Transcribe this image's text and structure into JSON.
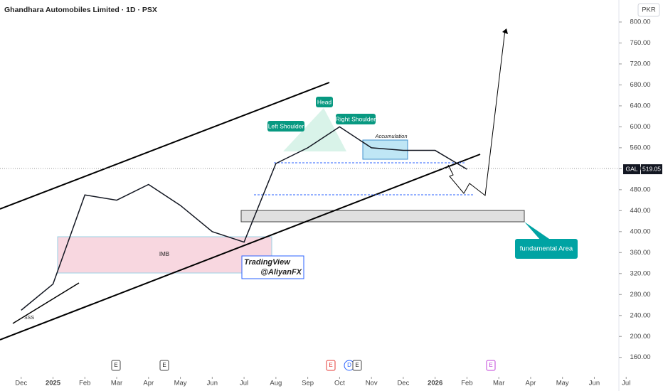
{
  "chart_data": {
    "type": "line",
    "title": "Ghandhara Automobiles Limited · 1D · PSX",
    "currency": "PKR",
    "x": [
      "2024-12",
      "2025-01",
      "2025-02",
      "2025-03",
      "2025-04",
      "2025-05",
      "2025-06",
      "2025-07",
      "2025-08",
      "2025-09",
      "2025-10",
      "2025-11",
      "2025-12",
      "2026-01",
      "2026-02"
    ],
    "series": [
      {
        "name": "GAL",
        "color": "#131722",
        "values": [
          250,
          300,
          470,
          460,
          490,
          450,
          400,
          380,
          530,
          560,
          600,
          560,
          555,
          555,
          519.05
        ],
        "last_label": "519.05"
      }
    ],
    "xlim": [
      "2024-11",
      "2026-08"
    ],
    "xticks": [
      {
        "value": "2024-12",
        "label": "Dec"
      },
      {
        "value": "2025-01",
        "label": "2025"
      },
      {
        "value": "2025-02",
        "label": "Feb"
      },
      {
        "value": "2025-03",
        "label": "Mar"
      },
      {
        "value": "2025-04",
        "label": "Apr"
      },
      {
        "value": "2025-05",
        "label": "May"
      },
      {
        "value": "2025-06",
        "label": "Jun"
      },
      {
        "value": "2025-07",
        "label": "Jul"
      },
      {
        "value": "2025-08",
        "label": "Aug"
      },
      {
        "value": "2025-09",
        "label": "Sep"
      },
      {
        "value": "2025-10",
        "label": "Oct"
      },
      {
        "value": "2025-11",
        "label": "Nov"
      },
      {
        "value": "2025-12",
        "label": "Dec"
      },
      {
        "value": "2026-01",
        "label": "2026"
      },
      {
        "value": "2026-02",
        "label": "Feb"
      },
      {
        "value": "2026-03",
        "label": "Mar"
      },
      {
        "value": "2026-04",
        "label": "Apr"
      },
      {
        "value": "2026-05",
        "label": "May"
      },
      {
        "value": "2026-06",
        "label": "Jun"
      },
      {
        "value": "2026-07",
        "label": "Jul"
      }
    ],
    "ylim": [
      123,
      842
    ],
    "yticks": [
      {
        "value": 160,
        "label": "160.00"
      },
      {
        "value": 200,
        "label": "200.00"
      },
      {
        "value": 240,
        "label": "240.00"
      },
      {
        "value": 280,
        "label": "280.00"
      },
      {
        "value": 320,
        "label": "320.00"
      },
      {
        "value": 360,
        "label": "360.00"
      },
      {
        "value": 400,
        "label": "400.00"
      },
      {
        "value": 440,
        "label": "440.00"
      },
      {
        "value": 480,
        "label": "480.00"
      },
      {
        "value": 520,
        "label": "520.00"
      },
      {
        "value": 560,
        "label": "560.00"
      },
      {
        "value": 600,
        "label": "600.00"
      },
      {
        "value": 640,
        "label": "640.00"
      },
      {
        "value": 680,
        "label": "680.00"
      },
      {
        "value": 720,
        "label": "720.00"
      },
      {
        "value": 760,
        "label": "760.00"
      },
      {
        "value": 800,
        "label": "800.00"
      }
    ],
    "annotations": {
      "left_shoulder": "Left Shoulder",
      "head": "Head",
      "right_shoulder": "Right Shoulder",
      "accumulation": "Accumulation",
      "imb": "IMB",
      "sss": "SSS",
      "watermark": "TradingView",
      "author": "@AliyanFX",
      "fundamental": "fundamental Area",
      "earnings": "E",
      "dividend": "D"
    }
  }
}
